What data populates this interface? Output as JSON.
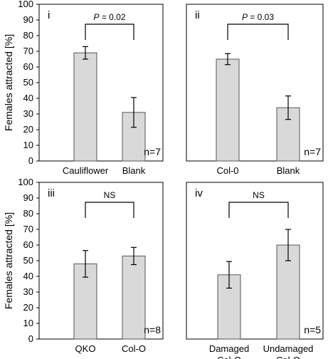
{
  "y_axis_label": "Females attracted [%]",
  "chart_data": [
    {
      "type": "bar",
      "panel": "i",
      "categories": [
        "Cauliflower",
        "Blank"
      ],
      "values": [
        69,
        31
      ],
      "errors": [
        4,
        9.5
      ],
      "ylim": [
        0,
        100
      ],
      "yticks": [
        "0",
        "10",
        "20",
        "30",
        "40",
        "50",
        "60",
        "70",
        "80",
        "90",
        "100"
      ],
      "n_label": "n=7",
      "significance": {
        "p_symbol": "P",
        "p_rest": " = 0.02"
      },
      "bar_color": "#d9d9d9"
    },
    {
      "type": "bar",
      "panel": "ii",
      "categories": [
        "Col-0",
        "Blank"
      ],
      "values": [
        65,
        34
      ],
      "errors": [
        3.5,
        7.5
      ],
      "ylim": [
        0,
        100
      ],
      "n_label": "n=7",
      "significance": {
        "p_symbol": "P",
        "p_rest": " = 0.03"
      },
      "bar_color": "#d9d9d9"
    },
    {
      "type": "bar",
      "panel": "iii",
      "categories": [
        "QKO",
        "Col-O"
      ],
      "values": [
        48,
        53
      ],
      "errors": [
        8.5,
        5.5
      ],
      "ylim": [
        0,
        100
      ],
      "yticks": [
        "0",
        "10",
        "20",
        "30",
        "40",
        "50",
        "60",
        "70",
        "80",
        "90",
        "100"
      ],
      "n_label": "n=8",
      "significance": {
        "text": "NS"
      },
      "bar_color": "#d9d9d9"
    },
    {
      "type": "bar",
      "panel": "iv",
      "categories": [
        "Damaged\nCol-O",
        "Undamaged\nCol-O"
      ],
      "values": [
        41,
        60
      ],
      "errors": [
        8.5,
        10
      ],
      "ylim": [
        0,
        100
      ],
      "n_label": "n=5",
      "significance": {
        "text": "NS"
      },
      "bar_color": "#d9d9d9"
    }
  ]
}
